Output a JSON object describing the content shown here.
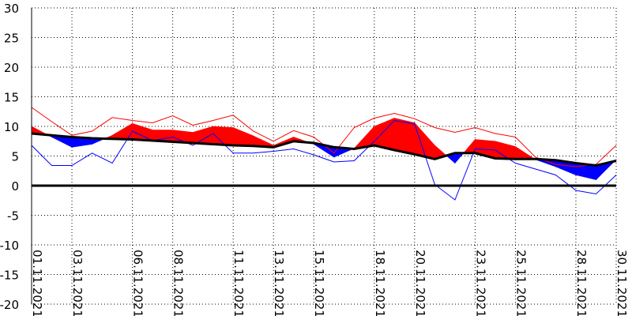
{
  "chart_data": {
    "type": "line",
    "title": "",
    "xlabel": "",
    "ylabel": "",
    "ylim": [
      -20,
      30
    ],
    "y_ticks": [
      30,
      25,
      20,
      15,
      10,
      5,
      0,
      -5,
      -10,
      -15,
      -20
    ],
    "x_tick_labels": [
      "01.11.2021",
      "03.11.2021",
      "06.11.2021",
      "08.11.2021",
      "11.11.2021",
      "13.11.2021",
      "15.11.2021",
      "18.11.2021",
      "20.11.2021",
      "23.11.2021",
      "25.11.2021",
      "28.11.2021",
      "30.11.2021"
    ],
    "x_tick_days": [
      1,
      3,
      6,
      8,
      11,
      13,
      15,
      18,
      20,
      23,
      25,
      28,
      30
    ],
    "grid": true,
    "x": [
      1,
      2,
      3,
      4,
      5,
      6,
      7,
      8,
      9,
      10,
      11,
      12,
      13,
      14,
      15,
      16,
      17,
      18,
      19,
      20,
      21,
      22,
      23,
      24,
      25,
      26,
      27,
      28,
      29,
      30
    ],
    "series": [
      {
        "role": "max",
        "color": "#ff0000",
        "values": [
          13.2,
          10.8,
          8.5,
          9.2,
          11.5,
          11.0,
          10.6,
          11.8,
          10.2,
          11.0,
          11.9,
          9.2,
          7.5,
          9.3,
          8.2,
          5.5,
          9.8,
          11.4,
          12.2,
          11.3,
          9.8,
          9.0,
          9.8,
          8.8,
          8.2,
          4.8,
          3.6,
          3.2,
          3.6,
          6.8
        ]
      },
      {
        "role": "mean",
        "color": "#ff0000",
        "values": [
          10.0,
          8.2,
          6.5,
          7.0,
          8.5,
          10.5,
          9.4,
          9.4,
          9.0,
          10.0,
          9.8,
          8.4,
          6.8,
          8.2,
          7.0,
          4.8,
          6.3,
          10.0,
          11.4,
          10.6,
          6.8,
          3.8,
          7.8,
          7.5,
          6.6,
          4.4,
          3.2,
          1.8,
          1.0,
          4.4
        ]
      },
      {
        "role": "normal",
        "color": "#000000",
        "values": [
          8.8,
          8.5,
          8.2,
          8.0,
          7.9,
          7.8,
          7.6,
          7.4,
          7.2,
          7.0,
          6.8,
          6.7,
          6.5,
          7.5,
          7.2,
          6.5,
          6.2,
          6.8,
          6.0,
          5.3,
          4.5,
          5.5,
          5.5,
          4.6,
          4.5,
          4.5,
          4.3,
          3.8,
          3.4,
          4.2
        ]
      },
      {
        "role": "min",
        "color": "#0000ff",
        "values": [
          6.8,
          3.4,
          3.4,
          5.5,
          3.8,
          9.2,
          7.6,
          8.2,
          6.8,
          8.8,
          5.5,
          5.5,
          5.8,
          6.2,
          5.2,
          4.0,
          4.2,
          7.5,
          11.0,
          10.4,
          0.2,
          -2.4,
          6.2,
          6.0,
          3.8,
          2.8,
          1.8,
          -0.8,
          -1.4,
          1.8
        ]
      }
    ]
  }
}
